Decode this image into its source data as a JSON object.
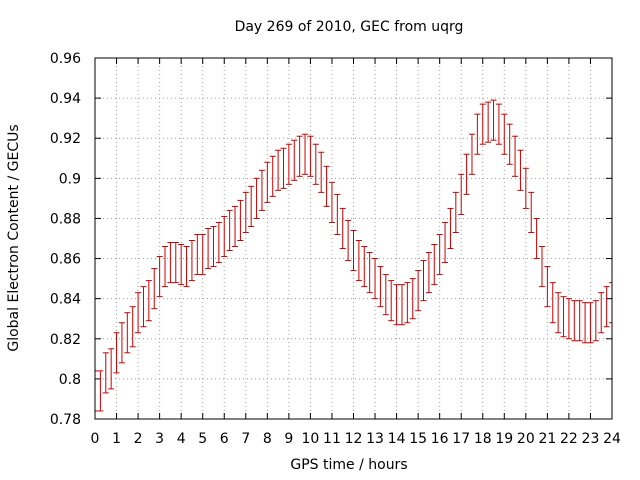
{
  "chart_data": {
    "type": "scatter",
    "title": "Day 269 of 2010, GEC from uqrg",
    "xlabel": "GPS time / hours",
    "ylabel": "Global Electron Content / GECUs",
    "xlim": [
      0,
      24
    ],
    "ylim": [
      0.78,
      0.96
    ],
    "x_ticks": [
      "0",
      "1",
      "2",
      "3",
      "4",
      "5",
      "6",
      "7",
      "8",
      "9",
      "10",
      "11",
      "12",
      "13",
      "14",
      "15",
      "16",
      "17",
      "18",
      "19",
      "20",
      "21",
      "22",
      "23",
      "24"
    ],
    "y_ticks": [
      "0.78",
      "0.8",
      "0.82",
      "0.84",
      "0.86",
      "0.88",
      "0.9",
      "0.92",
      "0.94",
      "0.96"
    ],
    "grid": true,
    "error_bar_color": "#cc0000",
    "series": [
      {
        "x": [
          0.0,
          0.25,
          0.5,
          0.75,
          1.0,
          1.25,
          1.5,
          1.75,
          2.0,
          2.25,
          2.5,
          2.75,
          3.0,
          3.25,
          3.5,
          3.75,
          4.0,
          4.25,
          4.5,
          4.75,
          5.0,
          5.25,
          5.5,
          5.75,
          6.0,
          6.25,
          6.5,
          6.75,
          7.0,
          7.25,
          7.5,
          7.75,
          8.0,
          8.25,
          8.5,
          8.75,
          9.0,
          9.25,
          9.5,
          9.75,
          10.0,
          10.25,
          10.5,
          10.75,
          11.0,
          11.25,
          11.5,
          11.75,
          12.0,
          12.25,
          12.5,
          12.75,
          13.0,
          13.25,
          13.5,
          13.75,
          14.0,
          14.25,
          14.5,
          14.75,
          15.0,
          15.25,
          15.5,
          15.75,
          16.0,
          16.25,
          16.5,
          16.75,
          17.0,
          17.25,
          17.5,
          17.75,
          18.0,
          18.25,
          18.5,
          18.75,
          19.0,
          19.25,
          19.5,
          19.75,
          20.0,
          20.25,
          20.5,
          20.75,
          21.0,
          21.25,
          21.5,
          21.75,
          22.0,
          22.25,
          22.5,
          22.75,
          23.0,
          23.25,
          23.5,
          23.75,
          24.0
        ],
        "y": [
          0.794,
          0.794,
          0.803,
          0.805,
          0.813,
          0.818,
          0.823,
          0.826,
          0.833,
          0.836,
          0.839,
          0.845,
          0.851,
          0.856,
          0.858,
          0.858,
          0.857,
          0.856,
          0.859,
          0.862,
          0.862,
          0.865,
          0.866,
          0.868,
          0.871,
          0.874,
          0.876,
          0.879,
          0.883,
          0.886,
          0.89,
          0.894,
          0.898,
          0.901,
          0.904,
          0.905,
          0.907,
          0.909,
          0.911,
          0.912,
          0.911,
          0.907,
          0.903,
          0.896,
          0.888,
          0.882,
          0.875,
          0.869,
          0.864,
          0.859,
          0.856,
          0.853,
          0.85,
          0.846,
          0.842,
          0.839,
          0.837,
          0.837,
          0.838,
          0.84,
          0.844,
          0.849,
          0.853,
          0.857,
          0.862,
          0.868,
          0.875,
          0.883,
          0.892,
          0.902,
          0.912,
          0.922,
          0.927,
          0.928,
          0.929,
          0.927,
          0.922,
          0.917,
          0.911,
          0.904,
          0.895,
          0.883,
          0.87,
          0.856,
          0.846,
          0.838,
          0.833,
          0.831,
          0.83,
          0.829,
          0.829,
          0.828,
          0.828,
          0.829,
          0.833,
          0.836,
          0.838
        ],
        "error": 0.01
      }
    ]
  }
}
